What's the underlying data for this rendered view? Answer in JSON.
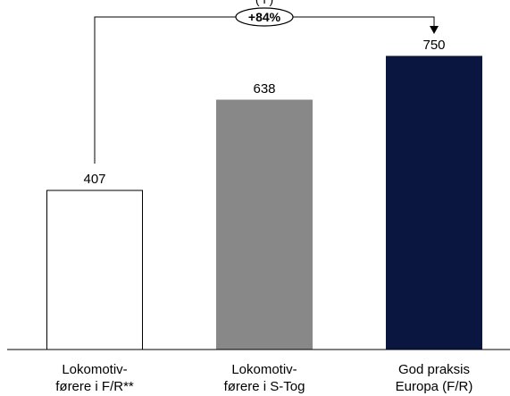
{
  "chart_data": {
    "type": "bar",
    "categories": [
      [
        "Lokomotiv-",
        "førere i F/R**"
      ],
      [
        "Lokomotiv-",
        "førere i S-Tog"
      ],
      [
        "God praksis",
        "Europa (F/R)"
      ]
    ],
    "values": [
      407,
      638,
      750
    ],
    "value_labels": [
      "407",
      "638",
      "750"
    ],
    "bar_colors": [
      "#ffffff",
      "#888888",
      "#0a1640"
    ],
    "ylim": [
      0,
      850
    ],
    "grid": false,
    "legend": "none",
    "title": "",
    "xlabel": "",
    "ylabel": "",
    "annotation": {
      "text": "+84%",
      "from_category_index": 0,
      "to_category_index": 2,
      "cut_off_text": "(    l    )"
    }
  }
}
